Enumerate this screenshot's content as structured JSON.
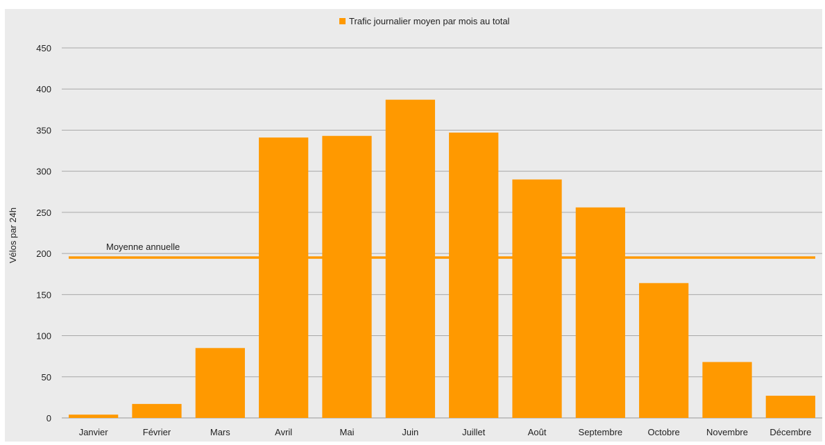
{
  "chart_data": {
    "type": "bar",
    "legend_placement": "top-center",
    "grid": true,
    "ylabel": "Vélos par 24h",
    "xlabel": "",
    "ylim": [
      0,
      450
    ],
    "yticks": [
      0,
      50,
      100,
      150,
      200,
      250,
      300,
      350,
      400,
      450
    ],
    "categories": [
      "Janvier",
      "Février",
      "Mars",
      "Avril",
      "Mai",
      "Juin",
      "Juillet",
      "Août",
      "Septembre",
      "Octobre",
      "Novembre",
      "Décembre"
    ],
    "series": [
      {
        "name": "Trafic journalier moyen par mois au total",
        "values": [
          4,
          17,
          85,
          341,
          343,
          387,
          347,
          290,
          256,
          164,
          68,
          27
        ],
        "color": "#ff9900"
      }
    ],
    "annotation": {
      "label": "Moyenne annuelle",
      "value": 195,
      "color": "#ff9900"
    }
  }
}
